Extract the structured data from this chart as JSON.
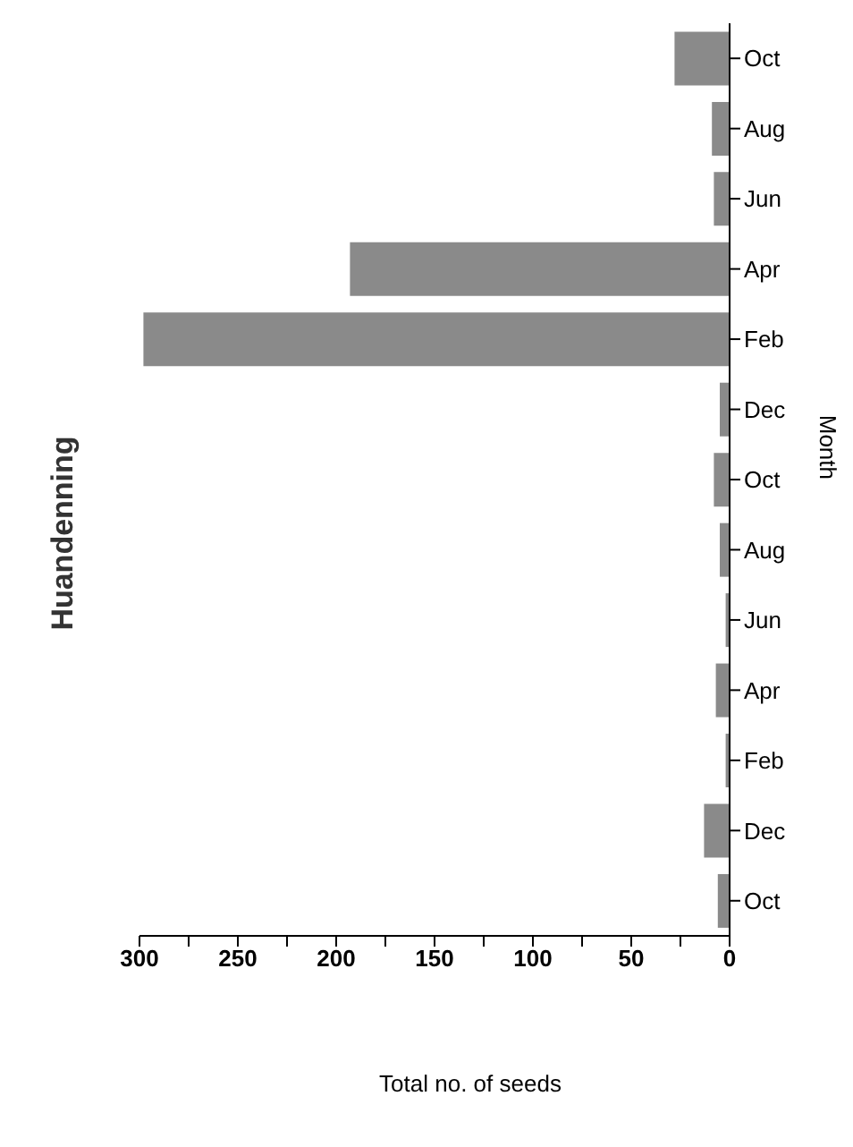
{
  "chart_data": {
    "type": "bar",
    "orientation": "horizontal",
    "title": "Huandenning",
    "xlabel": "Total no. of seeds",
    "ylabel": "Month",
    "categories": [
      "Oct",
      "Aug",
      "Jun",
      "Apr",
      "Feb",
      "Dec",
      "Oct",
      "Aug",
      "Jun",
      "Apr",
      "Feb",
      "Dec",
      "Oct"
    ],
    "values": [
      28,
      9,
      8,
      193,
      298,
      5,
      8,
      5,
      2,
      7,
      2,
      13,
      6
    ],
    "color": "#8a8a8a",
    "xlim": [
      300,
      0
    ],
    "xticks": [
      300,
      {
        "value": 275,
        "label": null
      },
      250,
      {
        "value": 225,
        "label": null
      },
      200,
      {
        "value": 175,
        "label": null
      },
      150,
      {
        "value": 125,
        "label": null
      },
      100,
      {
        "value": 75,
        "label": null
      },
      50,
      {
        "value": 25,
        "label": null
      },
      0
    ],
    "grid": false
  }
}
